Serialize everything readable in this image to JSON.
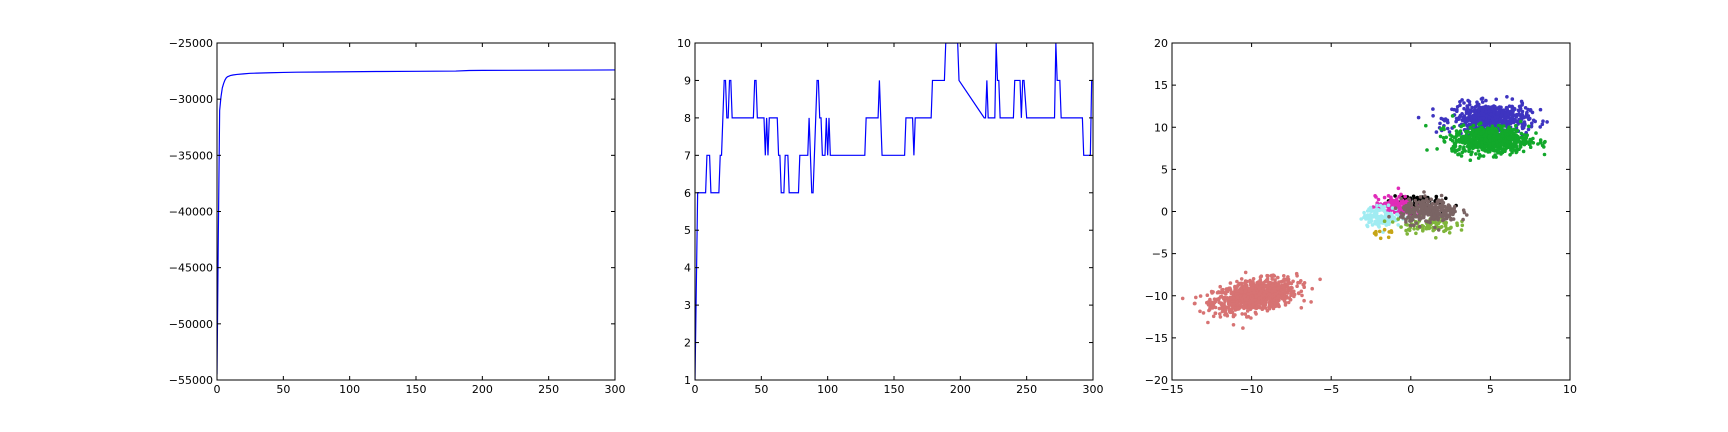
{
  "chart_data": [
    {
      "type": "line",
      "title": "",
      "xlabel": "",
      "ylabel": "",
      "xlim": [
        0,
        300
      ],
      "ylim": [
        -55000,
        -25000
      ],
      "xticks": [
        0,
        50,
        100,
        150,
        200,
        250,
        300
      ],
      "yticks": [
        -55000,
        -50000,
        -45000,
        -40000,
        -35000,
        -30000,
        -25000
      ],
      "xtick_labels": [
        "0",
        "50",
        "100",
        "150",
        "200",
        "250",
        "300"
      ],
      "ytick_labels": [
        "−55000",
        "−50000",
        "−45000",
        "−40000",
        "−35000",
        "−30000",
        "−25000"
      ],
      "grid": false,
      "series": [
        {
          "color": "#0000ff",
          "x": [
            0,
            1,
            2,
            3,
            4,
            5,
            6,
            7,
            8,
            9,
            10,
            12,
            15,
            20,
            25,
            30,
            40,
            50,
            60,
            80,
            100,
            120,
            150,
            180,
            190,
            200,
            220,
            250,
            280,
            300
          ],
          "y": [
            -54500,
            -42000,
            -31000,
            -29800,
            -29000,
            -28600,
            -28300,
            -28100,
            -28000,
            -27950,
            -27900,
            -27850,
            -27800,
            -27750,
            -27700,
            -27680,
            -27650,
            -27620,
            -27600,
            -27580,
            -27560,
            -27540,
            -27520,
            -27500,
            -27450,
            -27440,
            -27430,
            -27420,
            -27410,
            -27400
          ]
        }
      ]
    },
    {
      "type": "line",
      "title": "",
      "xlabel": "",
      "ylabel": "",
      "xlim": [
        0,
        300
      ],
      "ylim": [
        1,
        10
      ],
      "xticks": [
        0,
        50,
        100,
        150,
        200,
        250,
        300
      ],
      "yticks": [
        1,
        2,
        3,
        4,
        5,
        6,
        7,
        8,
        9,
        10
      ],
      "xtick_labels": [
        "0",
        "50",
        "100",
        "150",
        "200",
        "250",
        "300"
      ],
      "ytick_labels": [
        "1",
        "2",
        "3",
        "4",
        "5",
        "6",
        "7",
        "8",
        "9",
        "10"
      ],
      "grid": false,
      "series": [
        {
          "color": "#0000ff",
          "x": [
            0,
            2,
            3,
            8,
            9,
            11,
            12,
            18,
            19,
            20,
            21,
            22,
            23,
            24,
            25,
            26,
            27,
            28,
            29,
            44,
            45,
            46,
            47,
            52,
            53,
            54,
            55,
            56,
            57,
            58,
            62,
            63,
            64,
            65,
            67,
            68,
            70,
            71,
            72,
            78,
            79,
            85,
            86,
            87,
            88,
            89,
            90,
            91,
            92,
            93,
            94,
            95,
            96,
            98,
            99,
            100,
            101,
            102,
            103,
            104,
            105,
            106,
            128,
            129,
            138,
            139,
            140,
            141,
            158,
            159,
            164,
            165,
            166,
            167,
            168,
            178,
            179,
            180,
            181,
            188,
            189,
            190,
            198,
            199,
            218,
            219,
            220,
            221,
            225,
            226,
            227,
            228,
            229,
            230,
            240,
            241,
            245,
            246,
            247,
            248,
            250,
            251,
            255,
            256,
            270,
            271,
            272,
            273,
            274,
            275,
            276,
            277,
            292,
            293,
            298,
            299,
            300
          ],
          "y": [
            1,
            6,
            6,
            6,
            7,
            7,
            6,
            6,
            7,
            7,
            8,
            9,
            9,
            8,
            8,
            9,
            9,
            8,
            8,
            8,
            9,
            9,
            8,
            8,
            7,
            8,
            7,
            8,
            8,
            8,
            8,
            7,
            7,
            6,
            6,
            7,
            7,
            6,
            6,
            6,
            7,
            7,
            8,
            7,
            6,
            6,
            7,
            8,
            9,
            9,
            8,
            8,
            7,
            7,
            8,
            7,
            8,
            7,
            7,
            7,
            7,
            7,
            7,
            8,
            8,
            9,
            8,
            7,
            7,
            8,
            8,
            7,
            8,
            8,
            8,
            8,
            9,
            9,
            9,
            9,
            10,
            10,
            10,
            9,
            8,
            8,
            9,
            8,
            8,
            8,
            10,
            9,
            9,
            8,
            8,
            9,
            9,
            8,
            9,
            9,
            8,
            8,
            8,
            8,
            8,
            8,
            10,
            9,
            9,
            9,
            8,
            8,
            8,
            7,
            7,
            9,
            9
          ]
        }
      ]
    },
    {
      "type": "scatter",
      "title": "",
      "xlabel": "",
      "ylabel": "",
      "xlim": [
        -15,
        10
      ],
      "ylim": [
        -20,
        20
      ],
      "xticks": [
        -15,
        -10,
        -5,
        0,
        5,
        10
      ],
      "yticks": [
        -20,
        -15,
        -10,
        -5,
        0,
        5,
        10,
        15,
        20
      ],
      "xtick_labels": [
        "−15",
        "−10",
        "−5",
        "0",
        "5",
        "10"
      ],
      "ytick_labels": [
        "−20",
        "−15",
        "−10",
        "−5",
        "0",
        "5",
        "10",
        "15",
        "20"
      ],
      "grid": false,
      "clusters": [
        {
          "color": "#d77373",
          "center": [
            -9.8,
            -10.0
          ],
          "spread": [
            1.3,
            0.9
          ],
          "tilt": 0.3,
          "count": 900
        },
        {
          "color": "#3e34c0",
          "center": [
            5.0,
            11.0
          ],
          "spread": [
            1.2,
            0.9
          ],
          "tilt": 0.0,
          "count": 600
        },
        {
          "color": "#12a82b",
          "center": [
            5.0,
            8.5
          ],
          "spread": [
            1.2,
            0.8
          ],
          "tilt": 0.0,
          "count": 650
        },
        {
          "color": "#000000",
          "center": [
            0.2,
            1.2
          ],
          "spread": [
            0.8,
            0.5
          ],
          "tilt": 0.0,
          "count": 70
        },
        {
          "color": "#e02ab8",
          "center": [
            -1.0,
            0.6
          ],
          "spread": [
            0.6,
            0.6
          ],
          "tilt": 0.0,
          "count": 140
        },
        {
          "color": "#a0ecf2",
          "center": [
            -1.8,
            -0.6
          ],
          "spread": [
            0.6,
            0.6
          ],
          "tilt": 0.0,
          "count": 140
        },
        {
          "color": "#7fb53a",
          "center": [
            1.0,
            -1.6
          ],
          "spread": [
            0.9,
            0.5
          ],
          "tilt": 0.0,
          "count": 90
        },
        {
          "color": "#c6a516",
          "center": [
            -1.8,
            -2.6
          ],
          "spread": [
            0.4,
            0.3
          ],
          "tilt": 0.0,
          "count": 12
        },
        {
          "color": "#7a6464",
          "center": [
            1.2,
            0.0
          ],
          "spread": [
            0.9,
            0.7
          ],
          "tilt": 0.0,
          "count": 280
        }
      ]
    }
  ]
}
